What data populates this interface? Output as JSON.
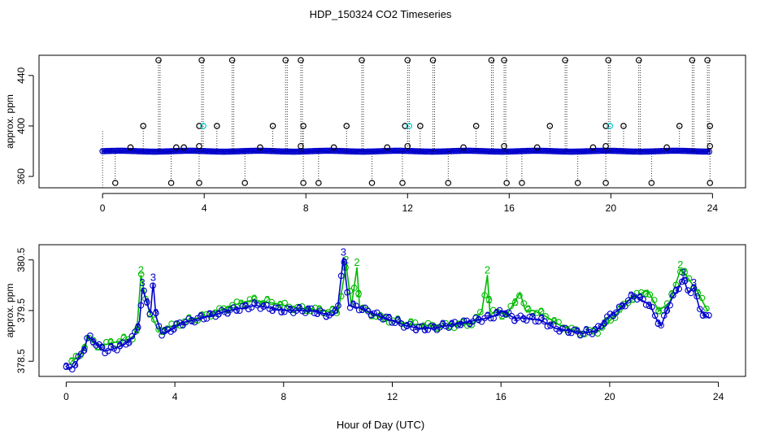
{
  "title": "HDP_150324  CO2 Timeseries",
  "xlabel": "Hour of Day (UTC)",
  "colors": {
    "blue": "#0000cc",
    "green": "#00bb00",
    "cyan": "#00cccc",
    "black": "#000000"
  },
  "chart_data": [
    {
      "type": "scatter",
      "ylabel": "approx. ppm",
      "xlim": [
        -2.5,
        25.3
      ],
      "ylim": [
        351,
        456
      ],
      "xticks": [
        0,
        4,
        8,
        12,
        16,
        20,
        24
      ],
      "yticks": [
        360,
        400,
        440
      ],
      "baseline": 380,
      "outliers_high": [
        2.2,
        3.9,
        5.1,
        7.2,
        7.8,
        10.2,
        12.0,
        13.0,
        15.3,
        15.8,
        18.2,
        19.9,
        21.1,
        23.2,
        23.8
      ],
      "outliers_400": [
        1.6,
        4.5,
        6.7,
        7.9,
        9.6,
        12.5,
        14.7,
        17.6,
        20.5,
        22.7,
        23.9
      ],
      "outliers_400_cyan": [
        3.9,
        12.0,
        19.9
      ],
      "outliers_low": [
        0.5,
        2.7,
        3.8,
        5.6,
        7.9,
        8.5,
        10.6,
        11.8,
        13.6,
        15.9,
        16.5,
        18.7,
        19.8,
        21.6,
        23.9
      ],
      "points_383": [
        1.1,
        2.9,
        3.2,
        6.2,
        9.1,
        11.2,
        14.2,
        17.1,
        19.3,
        22.2
      ],
      "points_384": [
        3.8,
        7.8,
        12.0,
        15.8,
        19.8,
        23.9
      ]
    },
    {
      "type": "line",
      "ylabel": "approx. ppm",
      "xlim": [
        -1,
        25
      ],
      "ylim": [
        378.2,
        380.8
      ],
      "xticks": [
        0,
        4,
        8,
        12,
        16,
        20,
        24
      ],
      "yticks": [
        378.5,
        379.5,
        380.5
      ],
      "series": [
        {
          "name": "3",
          "color": "#0000cc",
          "x": [
            0,
            0.3,
            0.5,
            0.7,
            0.8,
            1.1,
            1.4,
            1.8,
            2.2,
            2.5,
            2.7,
            2.8,
            3.0,
            3.1,
            3.2,
            3.3,
            3.5,
            3.8,
            4.2,
            5.0,
            6.0,
            7.0,
            7.5,
            8.0,
            9.0,
            9.8,
            10.0,
            10.2,
            10.4,
            10.8,
            11.5,
            12.0,
            12.5,
            13.0,
            13.5,
            14.0,
            14.5,
            15.0,
            15.5,
            15.8,
            16.0,
            16.5,
            17.0,
            17.5,
            18.0,
            18.5,
            19.0,
            19.5,
            20.0,
            20.3,
            20.6,
            20.9,
            21.2,
            21.5,
            21.7,
            21.9,
            22.1,
            22.3,
            22.5,
            22.7,
            22.9,
            23.1,
            23.3,
            23.5,
            23.7
          ],
          "y": [
            378.35,
            378.4,
            378.6,
            378.8,
            379.0,
            378.85,
            378.7,
            378.75,
            378.85,
            379.0,
            379.3,
            379.95,
            379.6,
            379.45,
            380.05,
            379.4,
            379.05,
            379.1,
            379.25,
            379.35,
            379.5,
            379.6,
            379.55,
            379.5,
            379.5,
            379.4,
            379.6,
            380.55,
            379.6,
            379.55,
            379.4,
            379.3,
            379.2,
            379.15,
            379.15,
            379.2,
            379.25,
            379.3,
            379.35,
            379.4,
            379.5,
            379.35,
            379.35,
            379.3,
            379.15,
            379.1,
            379.05,
            379.1,
            379.4,
            379.5,
            379.65,
            379.8,
            379.7,
            379.6,
            379.35,
            379.2,
            379.5,
            379.75,
            379.9,
            380.15,
            379.85,
            379.95,
            379.55,
            379.4,
            379.35
          ]
        },
        {
          "name": "2",
          "color": "#00bb00",
          "x": [
            0.2,
            0.5,
            0.8,
            1.2,
            1.6,
            2.0,
            2.4,
            2.6,
            2.75,
            2.9,
            3.05,
            3.4,
            4.2,
            5.2,
            6.1,
            6.8,
            7.6,
            8.5,
            9.4,
            10.0,
            10.3,
            10.5,
            10.7,
            10.8,
            11.0,
            11.6,
            12.4,
            13.4,
            14.2,
            15.0,
            15.3,
            15.5,
            15.6,
            15.8,
            16.2,
            16.7,
            16.9,
            17.2,
            17.6,
            18.2,
            19.0,
            19.6,
            20.2,
            20.7,
            21.0,
            21.4,
            21.8,
            22.2,
            22.6,
            22.8,
            23.2,
            23.6
          ],
          "y": [
            378.5,
            378.6,
            378.95,
            378.8,
            378.85,
            378.9,
            378.95,
            379.1,
            380.2,
            379.8,
            379.5,
            379.1,
            379.25,
            379.4,
            379.6,
            379.7,
            379.65,
            379.55,
            379.5,
            379.45,
            380.4,
            379.6,
            380.35,
            379.55,
            379.5,
            379.35,
            379.25,
            379.2,
            379.2,
            379.25,
            379.5,
            380.2,
            379.4,
            379.5,
            379.4,
            379.85,
            379.5,
            379.5,
            379.4,
            379.2,
            379.05,
            379.1,
            379.4,
            379.7,
            379.8,
            379.9,
            379.5,
            379.65,
            380.3,
            380.2,
            379.9,
            379.5
          ]
        }
      ]
    }
  ]
}
